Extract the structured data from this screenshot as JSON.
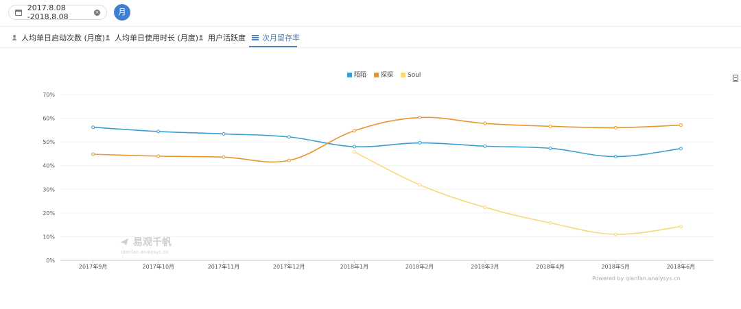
{
  "toolbar": {
    "date_range": "2017.8.08 -2018.8.08",
    "period_button": "月",
    "icons": {
      "calendar": "calendar-icon",
      "clear": "clear-icon"
    }
  },
  "tabs": [
    {
      "label": "人均单日启动次数 (月度)",
      "icon": "users-icon",
      "active": false
    },
    {
      "label": "人均单日使用时长 (月度)",
      "icon": "users-icon",
      "active": false
    },
    {
      "label": "用户活跃度",
      "icon": "users-icon",
      "active": false
    },
    {
      "label": "次月留存率",
      "icon": "bar-list-icon",
      "active": true
    }
  ],
  "watermark": {
    "main": "易观千帆",
    "sub": "qianfan.analysys.cn"
  },
  "powered_by": "Powered by qianfan.analysys.cn",
  "colors": {
    "accent": "#4a7fc1",
    "series1": "#3a9fce",
    "series2": "#e9962d",
    "series3": "#f7d97b"
  },
  "chart_data": {
    "type": "line",
    "categories": [
      "2017年9月",
      "2017年10月",
      "2017年11月",
      "2017年12月",
      "2018年1月",
      "2018年2月",
      "2018年3月",
      "2018年4月",
      "2018年5月",
      "2018年6月"
    ],
    "series": [
      {
        "name": "陌陌",
        "color": "#3a9fce",
        "values": [
          56.2,
          54.4,
          53.4,
          52.1,
          48.0,
          49.6,
          48.2,
          47.3,
          43.8,
          47.2
        ]
      },
      {
        "name": "探探",
        "color": "#e9962d",
        "values": [
          44.8,
          44.0,
          43.6,
          42.2,
          54.7,
          60.3,
          57.8,
          56.6,
          56.0,
          57.1
        ]
      },
      {
        "name": "Soul",
        "color": "#f7d97b",
        "values": [
          null,
          null,
          null,
          null,
          45.8,
          31.9,
          22.4,
          15.8,
          11.0,
          14.3
        ]
      }
    ],
    "y_ticks": [
      "0%",
      "10%",
      "20%",
      "30%",
      "40%",
      "50%",
      "60%",
      "70%"
    ],
    "ylim": [
      0,
      70
    ],
    "legend_position": "top-center",
    "grid": true
  }
}
